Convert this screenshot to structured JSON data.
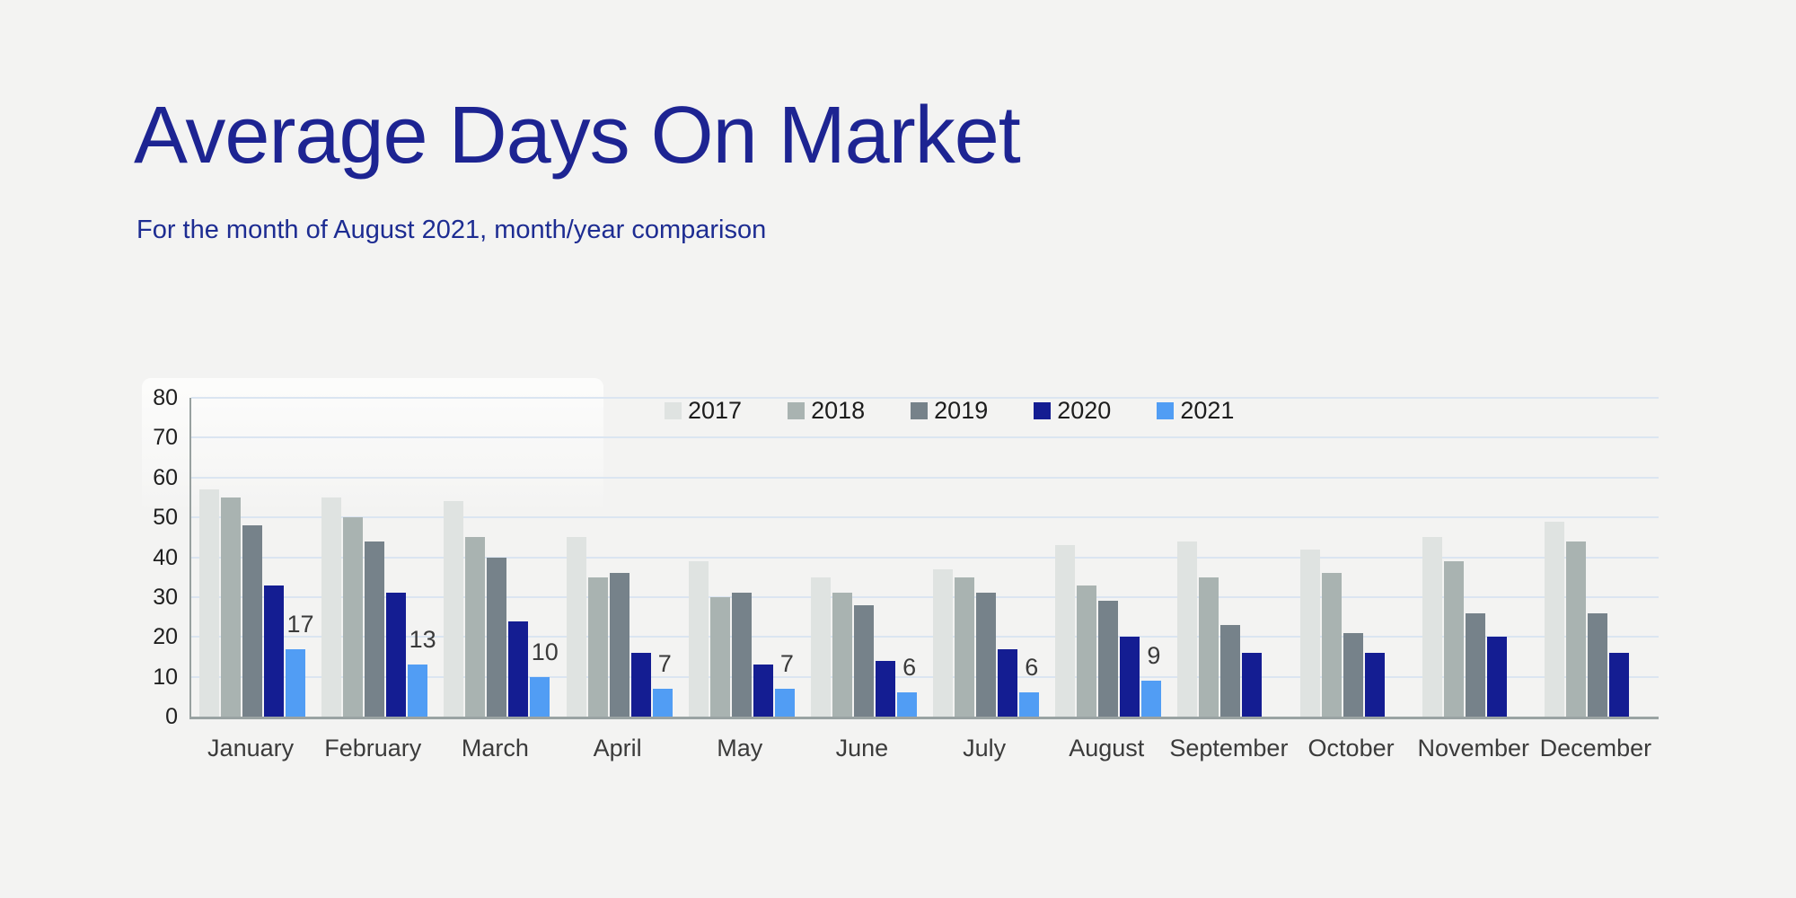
{
  "page": {
    "background": "#f3f3f2"
  },
  "header": {
    "title": "Average Days On Market",
    "subtitle": "For the month of August 2021, month/year comparison",
    "title_color": "#1d2492"
  },
  "chart_data": {
    "type": "bar",
    "title": "Average Days On Market",
    "subtitle": "For the month of August 2021, month/year comparison",
    "categories": [
      "January",
      "February",
      "March",
      "April",
      "May",
      "June",
      "July",
      "August",
      "September",
      "October",
      "November",
      "December"
    ],
    "series": [
      {
        "name": "2017",
        "color": "#dfe3e1",
        "values": [
          57,
          55,
          54,
          45,
          39,
          35,
          37,
          43,
          44,
          42,
          45,
          49
        ]
      },
      {
        "name": "2018",
        "color": "#a9b3b1",
        "values": [
          55,
          50,
          45,
          35,
          30,
          31,
          35,
          33,
          35,
          36,
          39,
          44
        ]
      },
      {
        "name": "2019",
        "color": "#76828a",
        "values": [
          48,
          44,
          40,
          36,
          31,
          28,
          31,
          29,
          23,
          21,
          26,
          26
        ]
      },
      {
        "name": "2020",
        "color": "#141d92",
        "values": [
          33,
          31,
          24,
          16,
          13,
          14,
          17,
          20,
          16,
          16,
          20,
          16
        ]
      },
      {
        "name": "2021",
        "color": "#519df4",
        "values": [
          17,
          13,
          10,
          7,
          7,
          6,
          6,
          9,
          null,
          null,
          null,
          null
        ],
        "show_data_labels": true
      }
    ],
    "data_labels_2021": [
      17,
      13,
      10,
      7,
      7,
      6,
      6,
      9
    ],
    "xlabel": "",
    "ylabel": "",
    "ylim": [
      0,
      80
    ],
    "yticks": [
      0,
      10,
      20,
      30,
      40,
      50,
      60,
      70,
      80
    ],
    "grid": true,
    "gridline_color": "#dbe5f1",
    "axis_color": "#97a09f",
    "legend_position": "top-inside",
    "legend_entries": [
      "2017",
      "2018",
      "2019",
      "2020",
      "2021"
    ]
  }
}
